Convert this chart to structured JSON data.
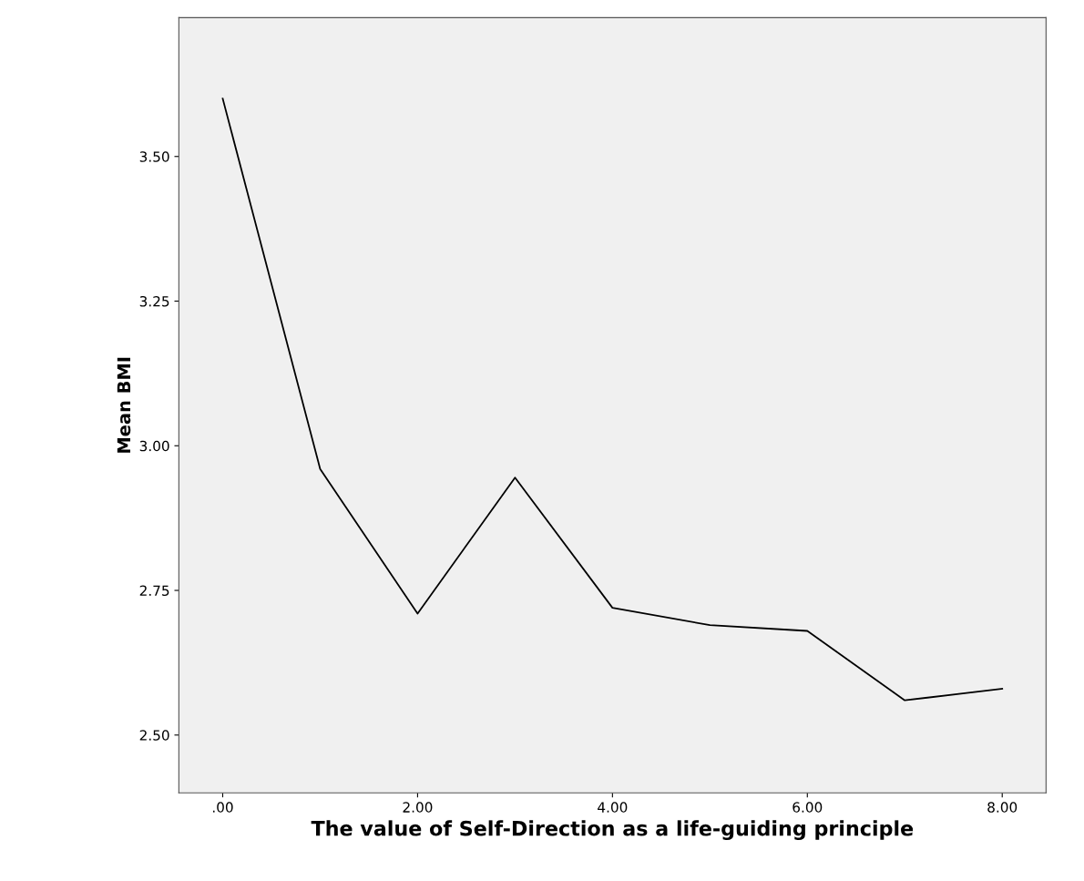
{
  "chart_data": {
    "type": "line",
    "xlabel": "The value of Self-Direction as a life-guiding principle",
    "ylabel": "Mean BMI",
    "x": [
      0,
      1,
      2,
      3,
      4,
      5,
      6,
      7,
      8
    ],
    "series": [
      {
        "color": "#000000",
        "values": [
          3.6,
          2.96,
          2.71,
          2.945,
          2.72,
          2.69,
          2.68,
          2.56,
          2.58
        ]
      }
    ],
    "xlim": [
      -0.45,
      8.45
    ],
    "xticks": [
      {
        "value": 0,
        "label": ".00"
      },
      {
        "value": 2,
        "label": "2.00"
      },
      {
        "value": 4,
        "label": "4.00"
      },
      {
        "value": 6,
        "label": "6.00"
      },
      {
        "value": 8,
        "label": "8.00"
      }
    ],
    "ylim": [
      2.4,
      3.74
    ],
    "yticks": [
      {
        "value": 2.5,
        "label": "2.50"
      },
      {
        "value": 2.75,
        "label": "2.75"
      },
      {
        "value": 3.0,
        "label": "3.00"
      },
      {
        "value": 3.25,
        "label": "3.25"
      },
      {
        "value": 3.5,
        "label": "3.50"
      }
    ],
    "grid": false,
    "legend": false,
    "marker": "none",
    "line_style": "solid"
  }
}
